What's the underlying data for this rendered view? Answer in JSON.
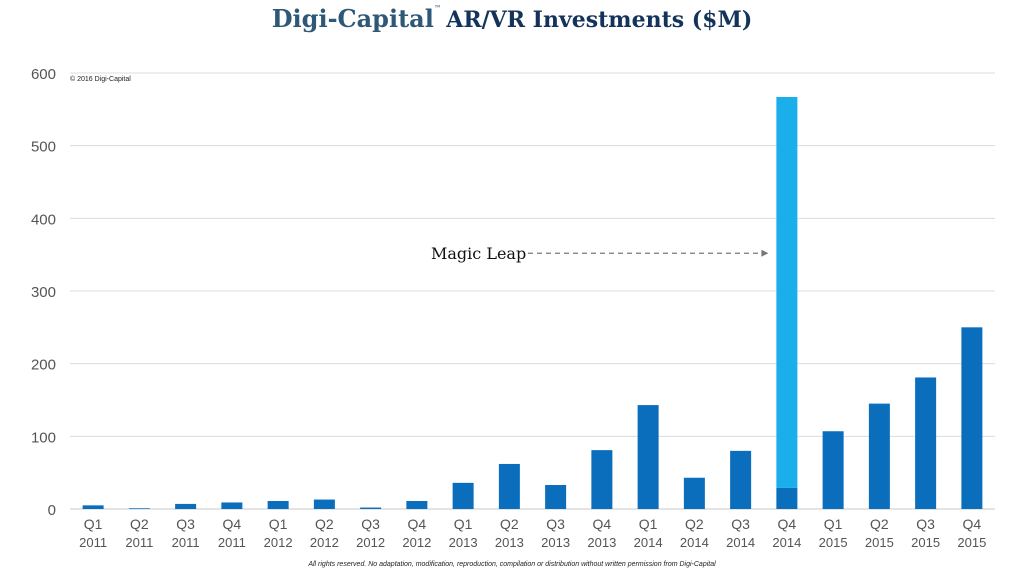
{
  "header": {
    "brand": "Digi-Capital",
    "trademark": "™",
    "title": "AR/VR Investments ($M)"
  },
  "copyright": "© 2016 Digi-Capital",
  "footer_note": "All rights reserved. No adaptation, modification, reproduction, compilation or distribution without written permission from Digi-Capital",
  "colors": {
    "bar": "#0a6ebd",
    "highlight": "#1aaeea",
    "grid": "#dcdcdc",
    "axis_text": "#555555",
    "annotation": "#777777"
  },
  "chart_data": {
    "type": "bar",
    "title": "Digi-Capital AR/VR Investments ($M)",
    "xlabel": "",
    "ylabel": "",
    "ylim": [
      0,
      600
    ],
    "yticks": [
      0,
      100,
      200,
      300,
      400,
      500,
      600
    ],
    "grid": true,
    "categories": [
      {
        "q": "Q1",
        "year": "2011"
      },
      {
        "q": "Q2",
        "year": "2011"
      },
      {
        "q": "Q3",
        "year": "2011"
      },
      {
        "q": "Q4",
        "year": "2011"
      },
      {
        "q": "Q1",
        "year": "2012"
      },
      {
        "q": "Q2",
        "year": "2012"
      },
      {
        "q": "Q3",
        "year": "2012"
      },
      {
        "q": "Q4",
        "year": "2012"
      },
      {
        "q": "Q1",
        "year": "2013"
      },
      {
        "q": "Q2",
        "year": "2013"
      },
      {
        "q": "Q3",
        "year": "2013"
      },
      {
        "q": "Q4",
        "year": "2013"
      },
      {
        "q": "Q1",
        "year": "2014"
      },
      {
        "q": "Q2",
        "year": "2014"
      },
      {
        "q": "Q3",
        "year": "2014"
      },
      {
        "q": "Q4",
        "year": "2014"
      },
      {
        "q": "Q1",
        "year": "2015"
      },
      {
        "q": "Q2",
        "year": "2015"
      },
      {
        "q": "Q3",
        "year": "2015"
      },
      {
        "q": "Q4",
        "year": "2015"
      }
    ],
    "series": [
      {
        "name": "Investments",
        "values": [
          5,
          1,
          7,
          9,
          11,
          13,
          2,
          11,
          36,
          62,
          33,
          81,
          143,
          43,
          80,
          29,
          107,
          145,
          181,
          250
        ]
      },
      {
        "name": "Magic Leap",
        "values": [
          0,
          0,
          0,
          0,
          0,
          0,
          0,
          0,
          0,
          0,
          0,
          0,
          0,
          0,
          0,
          538,
          0,
          0,
          0,
          0
        ]
      }
    ],
    "stacked": true,
    "annotations": [
      {
        "text": "Magic Leap",
        "category_index": 15,
        "y": 352,
        "arrow": "dashed"
      }
    ]
  }
}
